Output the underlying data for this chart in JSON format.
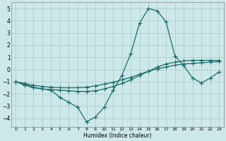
{
  "xlabel": "Humidex (Indice chaleur)",
  "xlim": [
    -0.5,
    23.5
  ],
  "ylim": [
    -4.7,
    5.5
  ],
  "xticks": [
    0,
    1,
    2,
    3,
    4,
    5,
    6,
    7,
    8,
    9,
    10,
    11,
    12,
    13,
    14,
    15,
    16,
    17,
    18,
    19,
    20,
    21,
    22,
    23
  ],
  "yticks": [
    -4,
    -3,
    -2,
    -1,
    0,
    1,
    2,
    3,
    4,
    5
  ],
  "background_color": "#cde8e8",
  "grid_color": "#b0cccc",
  "line_color": "#1a6b6b",
  "line_width": 0.9,
  "marker": "+",
  "marker_size": 4,
  "lines": [
    {
      "x": [
        0,
        1,
        2,
        3,
        4,
        5,
        6,
        7,
        8,
        9,
        10,
        11,
        12,
        13,
        14,
        15,
        16,
        17,
        18,
        19,
        20,
        21,
        22,
        23
      ],
      "y": [
        -1.0,
        -1.3,
        -1.5,
        -1.6,
        -1.7,
        -2.3,
        -2.7,
        -3.1,
        -4.3,
        -3.9,
        -3.1,
        -1.7,
        -0.5,
        1.3,
        3.8,
        5.0,
        4.8,
        3.9,
        1.1,
        0.3,
        -0.7,
        -1.1,
        -0.7,
        -0.2
      ]
    },
    {
      "x": [
        0,
        1,
        2,
        3,
        4,
        5,
        6,
        7,
        8,
        9,
        10,
        11,
        12,
        13,
        14,
        15,
        16,
        17,
        18,
        19,
        20,
        21,
        22,
        23
      ],
      "y": [
        -1.0,
        -1.15,
        -1.3,
        -1.4,
        -1.45,
        -1.5,
        -1.5,
        -1.5,
        -1.45,
        -1.35,
        -1.2,
        -1.05,
        -0.85,
        -0.65,
        -0.4,
        -0.15,
        0.05,
        0.2,
        0.35,
        0.45,
        0.5,
        0.55,
        0.6,
        0.65
      ]
    },
    {
      "x": [
        0,
        1,
        2,
        3,
        4,
        5,
        6,
        7,
        8,
        9,
        10,
        11,
        12,
        13,
        14,
        15,
        16,
        17,
        18,
        19,
        20,
        21,
        22,
        23
      ],
      "y": [
        -1.0,
        -1.2,
        -1.45,
        -1.6,
        -1.65,
        -1.7,
        -1.75,
        -1.8,
        -1.8,
        -1.75,
        -1.6,
        -1.4,
        -1.15,
        -0.85,
        -0.5,
        -0.15,
        0.2,
        0.45,
        0.6,
        0.7,
        0.75,
        0.75,
        0.75,
        0.75
      ]
    }
  ]
}
